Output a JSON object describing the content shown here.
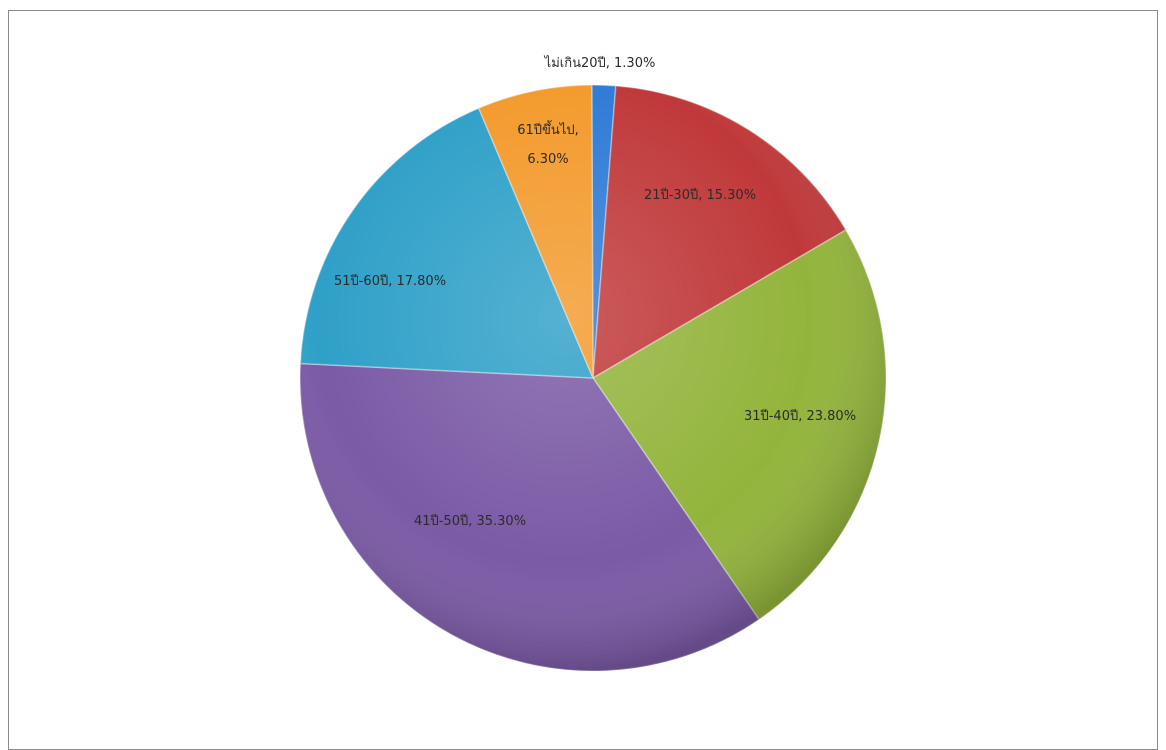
{
  "chart_data": {
    "type": "pie",
    "slices": [
      {
        "label": "ไม่เกิน20ปี",
        "value": 1.3,
        "value_text": "1.30%",
        "color": "#2e7bd6"
      },
      {
        "label": "21ปี-30ปี",
        "value": 15.3,
        "value_text": "15.30%",
        "color": "#c0393a"
      },
      {
        "label": "31ปี-40ปี",
        "value": 23.8,
        "value_text": "23.80%",
        "color": "#93b43c"
      },
      {
        "label": "41ปี-50ปี",
        "value": 35.3,
        "value_text": "35.30%",
        "color": "#7b5aa6"
      },
      {
        "label": "51ปี-60ปี",
        "value": 17.8,
        "value_text": "17.80%",
        "color": "#2fa0c8"
      },
      {
        "label": "61ปีขึ้นไป",
        "value": 6.3,
        "value_text": "6.30%",
        "color": "#f39a2c"
      }
    ],
    "labels": [
      {
        "text": "ไม่เกิน20ปี, 1.30%"
      },
      {
        "text": "21ปี-30ปี, 15.30%"
      },
      {
        "text": "31ปี-40ปี, 23.80%"
      },
      {
        "text": "41ปี-50ปี, 35.30%"
      },
      {
        "text": "51ปี-60ปี, 17.80%"
      },
      {
        "lines": [
          "61ปีขึ้นไป,",
          "6.30%"
        ]
      }
    ],
    "legend": "none"
  }
}
